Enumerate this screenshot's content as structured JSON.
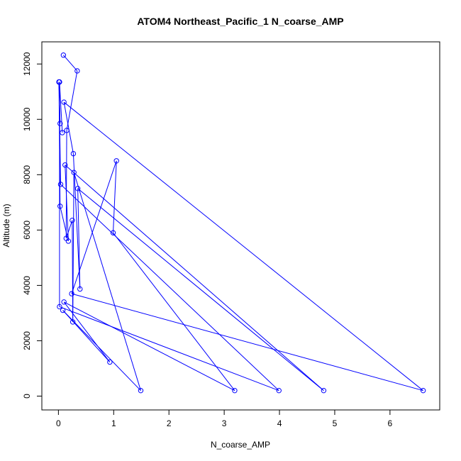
{
  "chart_data": {
    "type": "line",
    "title": "ATOM4 Northeast_Pacific_1 N_coarse_AMP",
    "xlabel": "N_coarse_AMP",
    "ylabel": "Altitude (m)",
    "xlim": [
      -0.3,
      6.9
    ],
    "ylim": [
      -500,
      12800
    ],
    "x_ticks": [
      0,
      1,
      2,
      3,
      4,
      5,
      6
    ],
    "y_ticks": [
      0,
      2000,
      4000,
      6000,
      8000,
      10000,
      12000
    ],
    "grid": false,
    "series": [
      {
        "color": "#0000ff",
        "marker": "open-circle",
        "points": [
          {
            "x": 0.09,
            "y": 12320
          },
          {
            "x": 0.34,
            "y": 11750
          },
          {
            "x": 0.15,
            "y": 9600
          },
          {
            "x": 0.14,
            "y": 5700
          },
          {
            "x": 0.25,
            "y": 6350
          },
          {
            "x": 0.26,
            "y": 2680
          },
          {
            "x": 0.28,
            "y": 8080
          },
          {
            "x": 1.49,
            "y": 200
          },
          {
            "x": 0.08,
            "y": 3100
          },
          {
            "x": 0.93,
            "y": 1230
          },
          {
            "x": 0.1,
            "y": 3400
          },
          {
            "x": 3.19,
            "y": 200
          },
          {
            "x": 0.99,
            "y": 5900
          },
          {
            "x": 1.05,
            "y": 8500
          },
          {
            "x": 0.24,
            "y": 3700
          },
          {
            "x": 6.6,
            "y": 200
          },
          {
            "x": 0.1,
            "y": 10620
          },
          {
            "x": 0.27,
            "y": 8760
          },
          {
            "x": 0.39,
            "y": 3870
          },
          {
            "x": 0.35,
            "y": 7500
          },
          {
            "x": 4.8,
            "y": 200
          },
          {
            "x": 0.12,
            "y": 8350
          },
          {
            "x": 0.18,
            "y": 5600
          },
          {
            "x": 0.03,
            "y": 6860
          },
          {
            "x": 0.01,
            "y": 11350
          },
          {
            "x": 0.03,
            "y": 9850
          },
          {
            "x": 0.01,
            "y": 11350
          },
          {
            "x": 0.04,
            "y": 7650
          },
          {
            "x": 3.99,
            "y": 200
          },
          {
            "x": 0.02,
            "y": 3230
          },
          {
            "x": 0.02,
            "y": 11350
          },
          {
            "x": 0.07,
            "y": 9520
          }
        ]
      }
    ]
  }
}
